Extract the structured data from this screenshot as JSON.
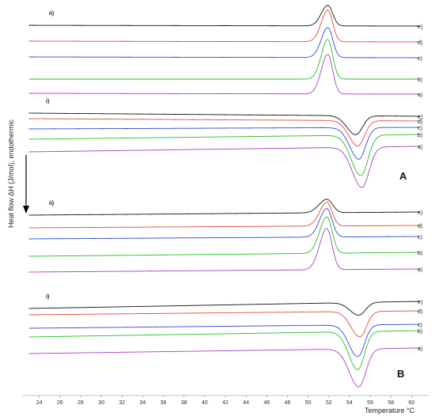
{
  "chart_data": {
    "type": "line",
    "xlabel": "Temperature °C",
    "ylabel": "Heat flow ΔH (J/mol), endothermic",
    "xlim": [
      22.5,
      61.5
    ],
    "x_ticks": [
      24,
      26,
      28,
      30,
      32,
      34,
      36,
      38,
      40,
      42,
      44,
      46,
      48,
      50,
      52,
      54,
      56,
      58,
      60
    ],
    "panels": [
      "A",
      "B"
    ],
    "groups": [
      {
        "id": "A-ii",
        "panel": "A",
        "label": "ii)",
        "direction": "exothermic",
        "series": [
          {
            "name": "e)",
            "color": "#111111",
            "baseline_left": 32,
            "baseline_right": 33,
            "peak_x": 51.9,
            "peak_height": 26,
            "width": 0.55
          },
          {
            "name": "d)",
            "color": "#e8473b",
            "baseline_left": 52,
            "baseline_right": 53,
            "peak_x": 51.9,
            "peak_height": 40,
            "width": 0.55
          },
          {
            "name": "c)",
            "color": "#2f45e0",
            "baseline_left": 72,
            "baseline_right": 73,
            "peak_x": 51.9,
            "peak_height": 38,
            "width": 0.55
          },
          {
            "name": "b)",
            "color": "#1fc21f",
            "baseline_left": 100,
            "baseline_right": 100,
            "peak_x": 51.9,
            "peak_height": 50,
            "width": 0.55
          },
          {
            "name": "a)",
            "color": "#a83fc0",
            "baseline_left": 118,
            "baseline_right": 119,
            "peak_x": 51.9,
            "peak_height": 50,
            "width": 0.55
          }
        ]
      },
      {
        "id": "A-i",
        "panel": "A",
        "label": "i)",
        "direction": "endothermic",
        "series": [
          {
            "name": "e)",
            "color": "#111111",
            "baseline_left": 143,
            "baseline_right": 147,
            "peak_x": 54.6,
            "peak_height": 24,
            "width": 0.75
          },
          {
            "name": "d)",
            "color": "#e8473b",
            "baseline_left": 150,
            "baseline_right": 153,
            "peak_x": 54.8,
            "peak_height": 32,
            "width": 0.75
          },
          {
            "name": "c)",
            "color": "#2f45e0",
            "baseline_left": 163,
            "baseline_right": 161,
            "peak_x": 54.9,
            "peak_height": 40,
            "width": 0.75
          },
          {
            "name": "b)",
            "color": "#1fc21f",
            "baseline_left": 176,
            "baseline_right": 170,
            "peak_x": 55.1,
            "peak_height": 51,
            "width": 0.8
          },
          {
            "name": "a)",
            "color": "#a83fc0",
            "baseline_left": 192,
            "baseline_right": 185,
            "peak_x": 55.2,
            "peak_height": 51,
            "width": 0.8
          }
        ]
      },
      {
        "id": "B-ii",
        "panel": "B",
        "label": "ii)",
        "direction": "exothermic",
        "series": [
          {
            "name": "e)",
            "color": "#111111",
            "baseline_left": 272,
            "baseline_right": 268,
            "peak_x": 51.8,
            "peak_height": 17,
            "width": 0.65
          },
          {
            "name": "d)",
            "color": "#e8473b",
            "baseline_left": 288,
            "baseline_right": 285,
            "peak_x": 51.8,
            "peak_height": 30,
            "width": 0.6
          },
          {
            "name": "c)",
            "color": "#2f45e0",
            "baseline_left": 302,
            "baseline_right": 299,
            "peak_x": 51.8,
            "peak_height": 36,
            "width": 0.6
          },
          {
            "name": "b)",
            "color": "#1fc21f",
            "baseline_left": 324,
            "baseline_right": 319,
            "peak_x": 51.8,
            "peak_height": 46,
            "width": 0.6
          },
          {
            "name": "a)",
            "color": "#a83fc0",
            "baseline_left": 344,
            "baseline_right": 340,
            "peak_x": 51.8,
            "peak_height": 52,
            "width": 0.6
          }
        ]
      },
      {
        "id": "B-i",
        "panel": "B",
        "label": "i)",
        "direction": "endothermic",
        "series": [
          {
            "name": "e)",
            "color": "#111111",
            "baseline_left": 390,
            "baseline_right": 381,
            "peak_x": 54.9,
            "peak_height": 16,
            "width": 0.75
          },
          {
            "name": "d)",
            "color": "#e8473b",
            "baseline_left": 398,
            "baseline_right": 393,
            "peak_x": 55.0,
            "peak_height": 32,
            "width": 0.75
          },
          {
            "name": "c)",
            "color": "#2f45e0",
            "baseline_left": 415,
            "baseline_right": 410,
            "peak_x": 54.8,
            "peak_height": 40,
            "width": 0.75
          },
          {
            "name": "b)",
            "color": "#1fc21f",
            "baseline_left": 426,
            "baseline_right": 418,
            "peak_x": 54.8,
            "peak_height": 48,
            "width": 0.75
          },
          {
            "name": "a)",
            "color": "#a83fc0",
            "baseline_left": 447,
            "baseline_right": 440,
            "peak_x": 54.9,
            "peak_height": 48,
            "width": 0.8
          }
        ]
      }
    ]
  }
}
